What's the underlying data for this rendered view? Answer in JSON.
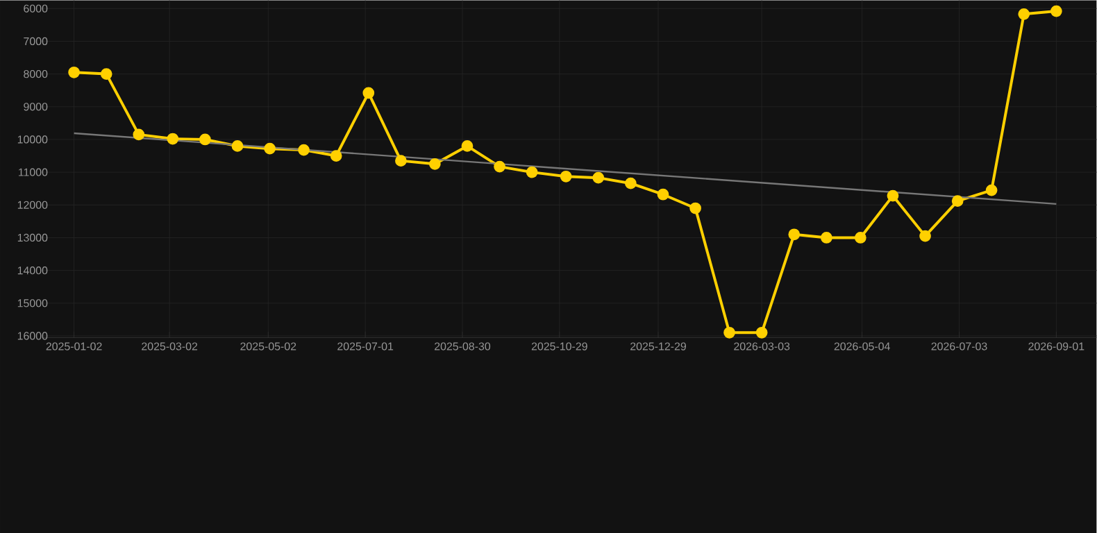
{
  "chart_data": {
    "type": "line",
    "ylim": [
      16050,
      5750
    ],
    "yticks": [
      6000,
      7000,
      8000,
      9000,
      10000,
      11000,
      12000,
      13000,
      14000,
      15000,
      16000
    ],
    "xlim": [
      "2024-12-13",
      "2026-09-26"
    ],
    "xticks": [
      "2025-01-02",
      "2025-03-02",
      "2025-05-02",
      "2025-07-01",
      "2025-08-30",
      "2025-10-29",
      "2025-12-29",
      "2026-03-03",
      "2026-05-04",
      "2026-07-03",
      "2026-09-01"
    ],
    "grid": true,
    "marker": "circle",
    "line_style": "solid",
    "series": [
      {
        "color": "#ffd000",
        "x": [
          "2025-01-02",
          "2025-01-22",
          "2025-02-11",
          "2025-03-04",
          "2025-03-24",
          "2025-04-13",
          "2025-05-03",
          "2025-05-24",
          "2025-06-13",
          "2025-07-03",
          "2025-07-23",
          "2025-08-13",
          "2025-09-02",
          "2025-09-22",
          "2025-10-12",
          "2025-11-02",
          "2025-11-22",
          "2025-12-12",
          "2026-01-01",
          "2026-01-21",
          "2026-02-11",
          "2026-03-03",
          "2026-03-23",
          "2026-04-12",
          "2026-05-03",
          "2026-05-23",
          "2026-06-12",
          "2026-07-02",
          "2026-07-23",
          "2026-08-12",
          "2026-09-01"
        ],
        "values": [
          7950,
          8000,
          9850,
          9980,
          10000,
          10200,
          10280,
          10320,
          10500,
          8580,
          10650,
          10750,
          10200,
          10830,
          11000,
          11130,
          11170,
          11340,
          11680,
          12100,
          15900,
          15900,
          12900,
          13000,
          13000,
          11720,
          12950,
          11880,
          11550,
          6170,
          6080
        ]
      },
      {
        "color": "#777777",
        "marker": "none",
        "x": [
          "2025-01-02",
          "2026-09-01"
        ],
        "values": [
          9810,
          11970
        ]
      }
    ]
  }
}
